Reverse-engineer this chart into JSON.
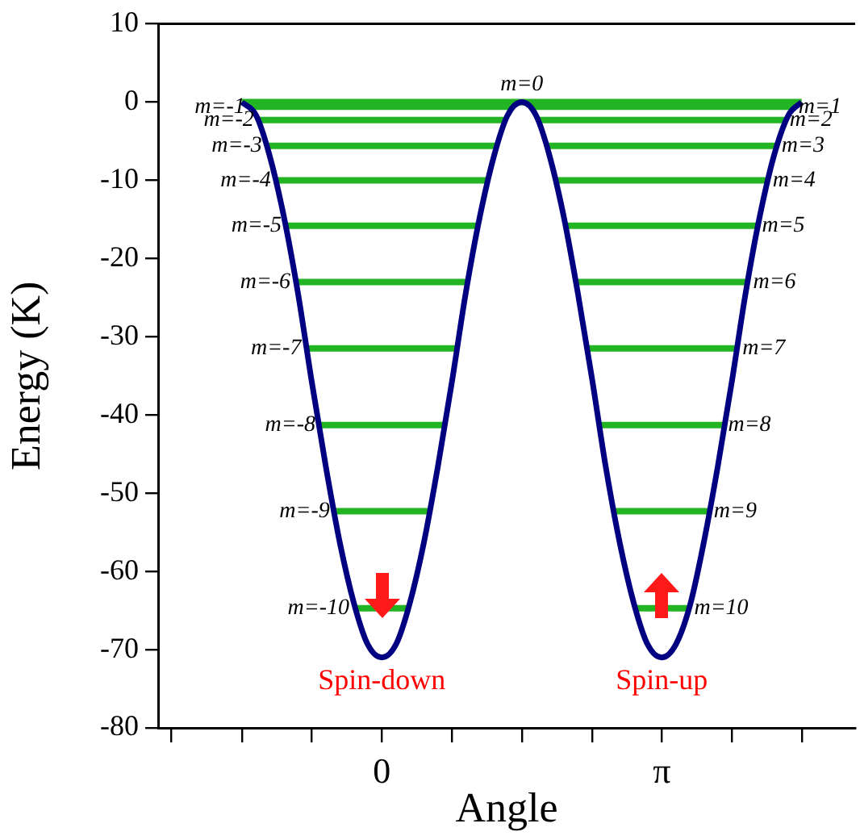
{
  "chart_data": {
    "type": "line",
    "xlabel": "Angle",
    "ylabel": "Energy (K)",
    "xlim": [
      -2.51,
      5.31
    ],
    "ylim": [
      -80,
      10
    ],
    "xticks": [
      {
        "value": -2.36,
        "label": null
      },
      {
        "value": -1.57,
        "label": null
      },
      {
        "value": -0.79,
        "label": null
      },
      0,
      {
        "value": 0.79,
        "label": null
      },
      {
        "value": 1.57,
        "label": null
      },
      {
        "value": 2.36,
        "label": null
      },
      {
        "value": 3.14,
        "label": "π"
      },
      {
        "value": 3.93,
        "label": null
      },
      {
        "value": 4.71,
        "label": null
      }
    ],
    "yticks": [
      10,
      0,
      -10,
      -20,
      -30,
      -40,
      -50,
      -60,
      -70,
      -80
    ],
    "grid": false,
    "legend": false,
    "marker": "none",
    "line_style": "solid",
    "series": [
      {
        "color": "#000080",
        "x": [
          -1.57,
          -1.41,
          -1.26,
          -1.1,
          -0.94,
          -0.79,
          -0.63,
          -0.47,
          -0.31,
          -0.16,
          0,
          0.16,
          0.31,
          0.47,
          0.63,
          0.79,
          0.94,
          1.1,
          1.26,
          1.41,
          1.57,
          1.73,
          1.88,
          2.04,
          2.2,
          2.36,
          2.51,
          2.67,
          2.83,
          2.98,
          3.14,
          3.3,
          3.46,
          3.61,
          3.77,
          3.93,
          4.08,
          4.24,
          4.4,
          4.56,
          4.71
        ],
        "values": [
          0,
          -1.7,
          -6.8,
          -14.6,
          -24.5,
          -35.5,
          -46.5,
          -56.4,
          -64.2,
          -69.3,
          -71,
          -69.3,
          -64.2,
          -56.4,
          -46.5,
          -35.5,
          -24.5,
          -14.6,
          -6.8,
          -1.7,
          0,
          -1.7,
          -6.8,
          -14.6,
          -24.5,
          -35.5,
          -46.5,
          -56.4,
          -64.2,
          -69.3,
          -71,
          -69.3,
          -64.2,
          -56.4,
          -46.5,
          -35.5,
          -24.5,
          -14.6,
          -6.8,
          -1.7,
          0
        ]
      },
      {
        "name": "m=0",
        "color": "#22b422",
        "x": [
          -1.57,
          4.71
        ],
        "values": [
          0,
          0
        ]
      },
      {
        "name": "m=-1",
        "color": "#22b422",
        "x": [
          -1.48,
          1.48
        ],
        "values": [
          -0.6,
          -0.6
        ]
      },
      {
        "name": "m=-2",
        "color": "#22b422",
        "x": [
          -1.38,
          1.38
        ],
        "values": [
          -2.3,
          -2.3
        ]
      },
      {
        "name": "m=-3",
        "color": "#22b422",
        "x": [
          -1.29,
          1.29
        ],
        "values": [
          -5.6,
          -5.6
        ]
      },
      {
        "name": "m=-4",
        "color": "#22b422",
        "x": [
          -1.19,
          1.19
        ],
        "values": [
          -10,
          -10
        ]
      },
      {
        "name": "m=-5",
        "color": "#22b422",
        "x": [
          -1.07,
          1.07
        ],
        "values": [
          -15.8,
          -15.8
        ]
      },
      {
        "name": "m=-6",
        "color": "#22b422",
        "x": [
          -0.97,
          0.97
        ],
        "values": [
          -23,
          -23
        ]
      },
      {
        "name": "m=-7",
        "color": "#22b422",
        "x": [
          -0.85,
          0.85
        ],
        "values": [
          -31.5,
          -31.5
        ]
      },
      {
        "name": "m=-8",
        "color": "#22b422",
        "x": [
          -0.69,
          0.69
        ],
        "values": [
          -41.3,
          -41.3
        ]
      },
      {
        "name": "m=-9",
        "color": "#22b422",
        "x": [
          -0.53,
          0.53
        ],
        "values": [
          -52.3,
          -52.3
        ]
      },
      {
        "name": "m=-10",
        "color": "#22b422",
        "x": [
          -0.31,
          0.31
        ],
        "values": [
          -64.7,
          -64.7
        ]
      },
      {
        "name": "m=1",
        "color": "#22b422",
        "x": [
          1.66,
          4.62
        ],
        "values": [
          -0.6,
          -0.6
        ]
      },
      {
        "name": "m=2",
        "color": "#22b422",
        "x": [
          1.76,
          4.52
        ],
        "values": [
          -2.3,
          -2.3
        ]
      },
      {
        "name": "m=3",
        "color": "#22b422",
        "x": [
          1.85,
          4.43
        ],
        "values": [
          -5.6,
          -5.6
        ]
      },
      {
        "name": "m=4",
        "color": "#22b422",
        "x": [
          1.95,
          4.33
        ],
        "values": [
          -10,
          -10
        ]
      },
      {
        "name": "m=5",
        "color": "#22b422",
        "x": [
          2.07,
          4.21
        ],
        "values": [
          -15.8,
          -15.8
        ]
      },
      {
        "name": "m=6",
        "color": "#22b422",
        "x": [
          2.17,
          4.11
        ],
        "values": [
          -23,
          -23
        ]
      },
      {
        "name": "m=7",
        "color": "#22b422",
        "x": [
          2.29,
          3.99
        ],
        "values": [
          -31.5,
          -31.5
        ]
      },
      {
        "name": "m=8",
        "color": "#22b422",
        "x": [
          2.45,
          3.83
        ],
        "values": [
          -41.3,
          -41.3
        ]
      },
      {
        "name": "m=9",
        "color": "#22b422",
        "x": [
          2.61,
          3.67
        ],
        "values": [
          -52.3,
          -52.3
        ]
      },
      {
        "name": "m=10",
        "color": "#22b422",
        "x": [
          2.83,
          3.45
        ],
        "values": [
          -64.7,
          -64.7
        ]
      }
    ],
    "annotations": [
      {
        "text": "Spin-down",
        "x": 0,
        "y": -71
      },
      {
        "text": "Spin-up",
        "x": 3.14,
        "y": -71
      }
    ]
  }
}
